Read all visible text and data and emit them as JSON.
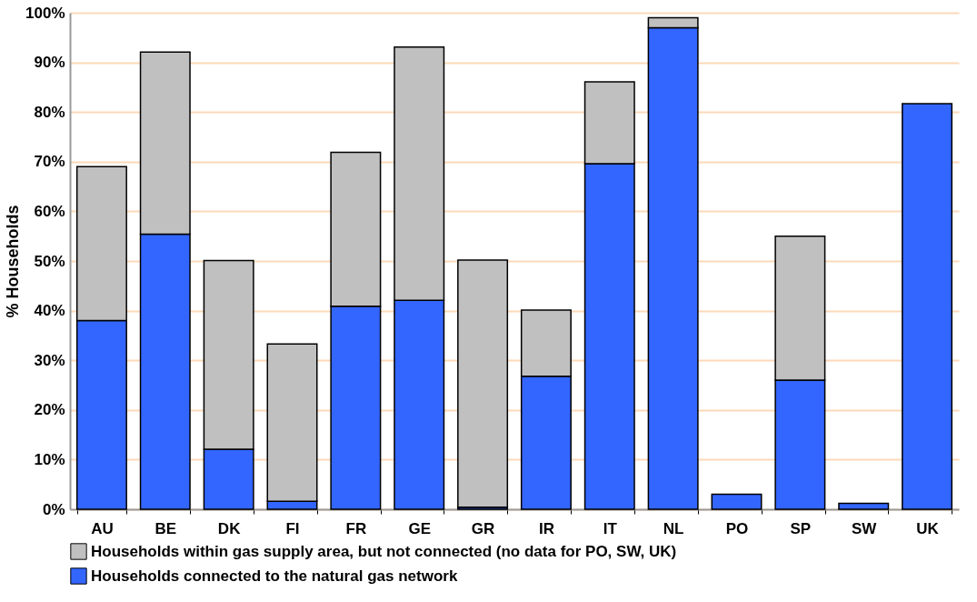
{
  "chart_data": {
    "type": "bar",
    "stacked": true,
    "ylabel": "% Households",
    "categories": [
      "AU",
      "BE",
      "DK",
      "FI",
      "FR",
      "GE",
      "GR",
      "IR",
      "IT",
      "NL",
      "PO",
      "SP",
      "SW",
      "UK"
    ],
    "series": [
      {
        "name": "Households connected to the natural gas network",
        "color": "#3366ff",
        "values": [
          38,
          55.4,
          12.1,
          1.6,
          40.9,
          42.1,
          0.4,
          26.8,
          69.6,
          97,
          3,
          26,
          1.2,
          81.7
        ]
      },
      {
        "name": "Households within gas supply area, but not connected (no data for PO, SW, UK)",
        "color": "#c0c0c0",
        "values": [
          31,
          36.7,
          38,
          31.7,
          31,
          51,
          49.8,
          13.3,
          16.5,
          2,
          null,
          29,
          null,
          null
        ]
      }
    ],
    "ylim": [
      0,
      100
    ],
    "yticks": [
      {
        "value": 0,
        "label": "0%"
      },
      {
        "value": 10,
        "label": "10%"
      },
      {
        "value": 20,
        "label": "20%"
      },
      {
        "value": 30,
        "label": "30%"
      },
      {
        "value": 40,
        "label": "40%"
      },
      {
        "value": 50,
        "label": "50%"
      },
      {
        "value": 60,
        "label": "60%"
      },
      {
        "value": 70,
        "label": "70%"
      },
      {
        "value": 80,
        "label": "80%"
      },
      {
        "value": 90,
        "label": "90%"
      },
      {
        "value": 100,
        "label": "100%"
      }
    ],
    "grid": "y",
    "legend": "bottom"
  }
}
